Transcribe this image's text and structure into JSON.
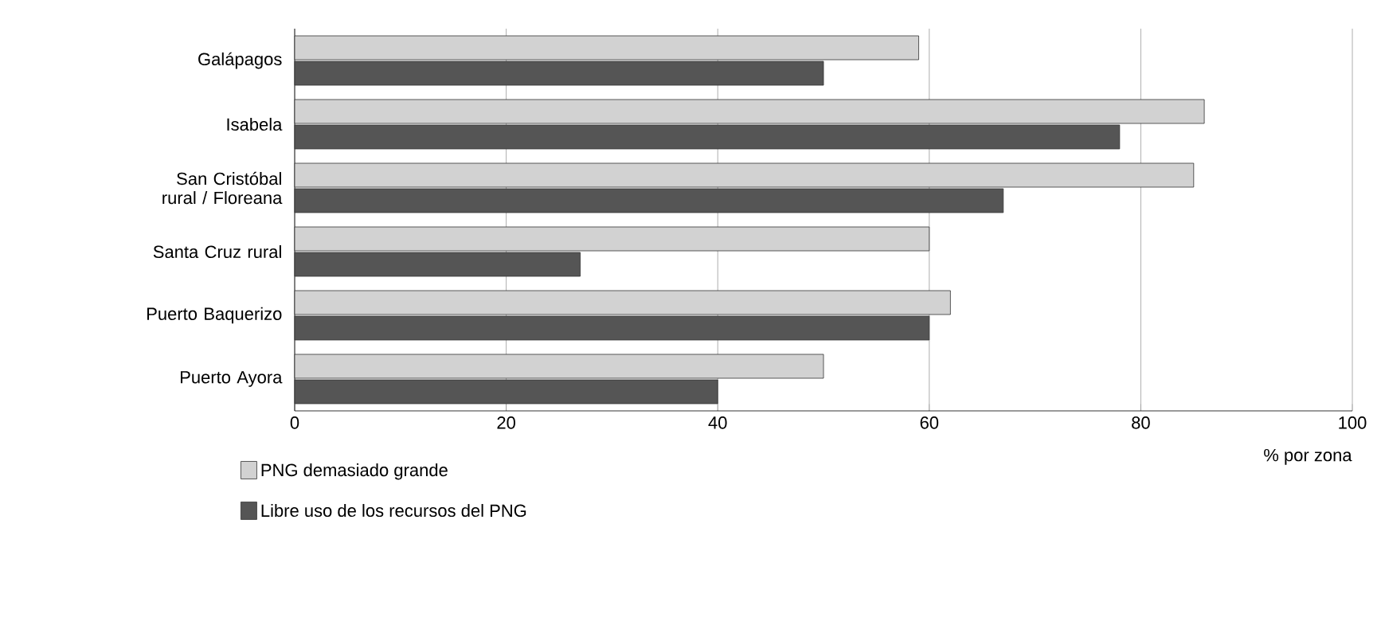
{
  "chart_data": {
    "type": "bar",
    "orientation": "horizontal",
    "xlabel": "% por zona",
    "categories": [
      "Galápagos",
      "Isabela",
      "San Cristóbal rural / Floreana",
      "Santa Cruz rural",
      "Puerto Baquerizo",
      "Puerto Ayora"
    ],
    "series": [
      {
        "name": "PNG demasiado grande",
        "color": "#d2d2d2",
        "values": [
          59,
          86,
          85,
          60,
          62,
          50
        ]
      },
      {
        "name": "Libre uso de los recursos del PNG",
        "color": "#555555",
        "values": [
          50,
          78,
          67,
          27,
          60,
          40
        ]
      }
    ],
    "xlim": [
      0,
      100
    ],
    "xticks": [
      0,
      20,
      40,
      60,
      80,
      100
    ],
    "grid": "x",
    "legend": "bottom left"
  }
}
